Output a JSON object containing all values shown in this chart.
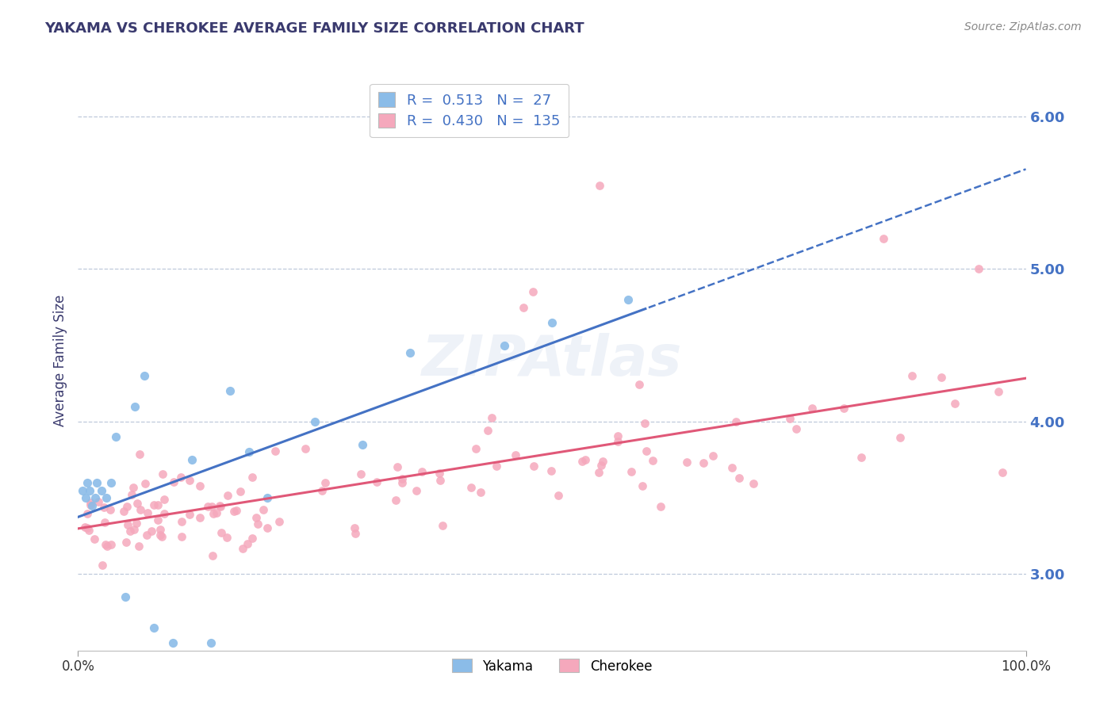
{
  "title": "YAKAMA VS CHEROKEE AVERAGE FAMILY SIZE CORRELATION CHART",
  "source_text": "Source: ZipAtlas.com",
  "ylabel": "Average Family Size",
  "title_color": "#3a3a6e",
  "axis_label_color": "#3a3a6e",
  "tick_color": "#4472c4",
  "background_color": "#ffffff",
  "plot_bg_color": "#ffffff",
  "grid_color": "#b8c4d8",
  "watermark_text": "ZIPAtlas",
  "yakama_color": "#8bbce8",
  "cherokee_color": "#f5a8bc",
  "trend_yakama_color": "#4472c4",
  "trend_cherokee_color": "#e05878",
  "legend_r_yakama": "0.513",
  "legend_n_yakama": "27",
  "legend_r_cherokee": "0.430",
  "legend_n_cherokee": "135",
  "xlim": [
    0,
    100
  ],
  "ylim": [
    2.5,
    6.3
  ],
  "yticks": [
    3.0,
    4.0,
    5.0,
    6.0
  ],
  "xticks": [
    0,
    100
  ],
  "xticklabels": [
    "0.0%",
    "100.0%"
  ]
}
